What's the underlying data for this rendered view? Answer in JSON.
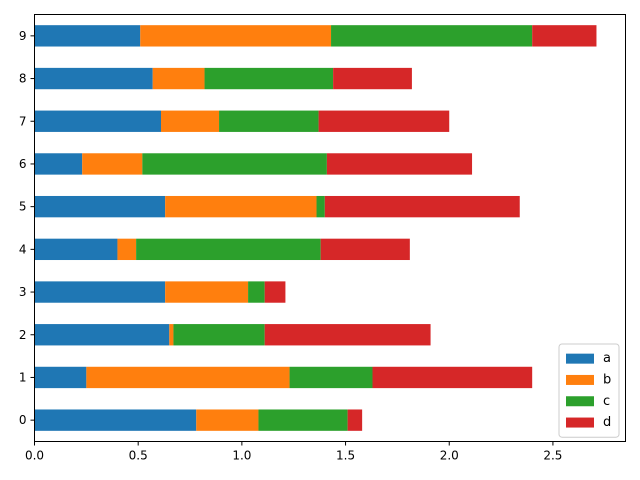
{
  "chart_data": {
    "type": "bar",
    "orientation": "horizontal",
    "stacked": true,
    "categories": [
      "0",
      "1",
      "2",
      "3",
      "4",
      "5",
      "6",
      "7",
      "8",
      "9"
    ],
    "series": [
      {
        "name": "a",
        "color": "#1f77b4",
        "values": [
          0.78,
          0.25,
          0.65,
          0.63,
          0.4,
          0.63,
          0.23,
          0.61,
          0.57,
          0.51
        ]
      },
      {
        "name": "b",
        "color": "#ff7f0e",
        "values": [
          0.3,
          0.98,
          0.02,
          0.4,
          0.09,
          0.73,
          0.29,
          0.28,
          0.25,
          0.92
        ]
      },
      {
        "name": "c",
        "color": "#2ca02c",
        "values": [
          0.43,
          0.4,
          0.44,
          0.08,
          0.89,
          0.04,
          0.89,
          0.48,
          0.62,
          0.97
        ]
      },
      {
        "name": "d",
        "color": "#d62728",
        "values": [
          0.07,
          0.77,
          0.8,
          0.1,
          0.43,
          0.94,
          0.7,
          0.63,
          0.38,
          0.31
        ]
      }
    ],
    "xlim": [
      0,
      2.85
    ],
    "xticks": [
      0.0,
      0.5,
      1.0,
      1.5,
      2.0,
      2.5
    ],
    "xtick_labels": [
      "0.0",
      "0.5",
      "1.0",
      "1.5",
      "2.0",
      "2.5"
    ],
    "grid": false,
    "legend_position": "lower-right"
  }
}
